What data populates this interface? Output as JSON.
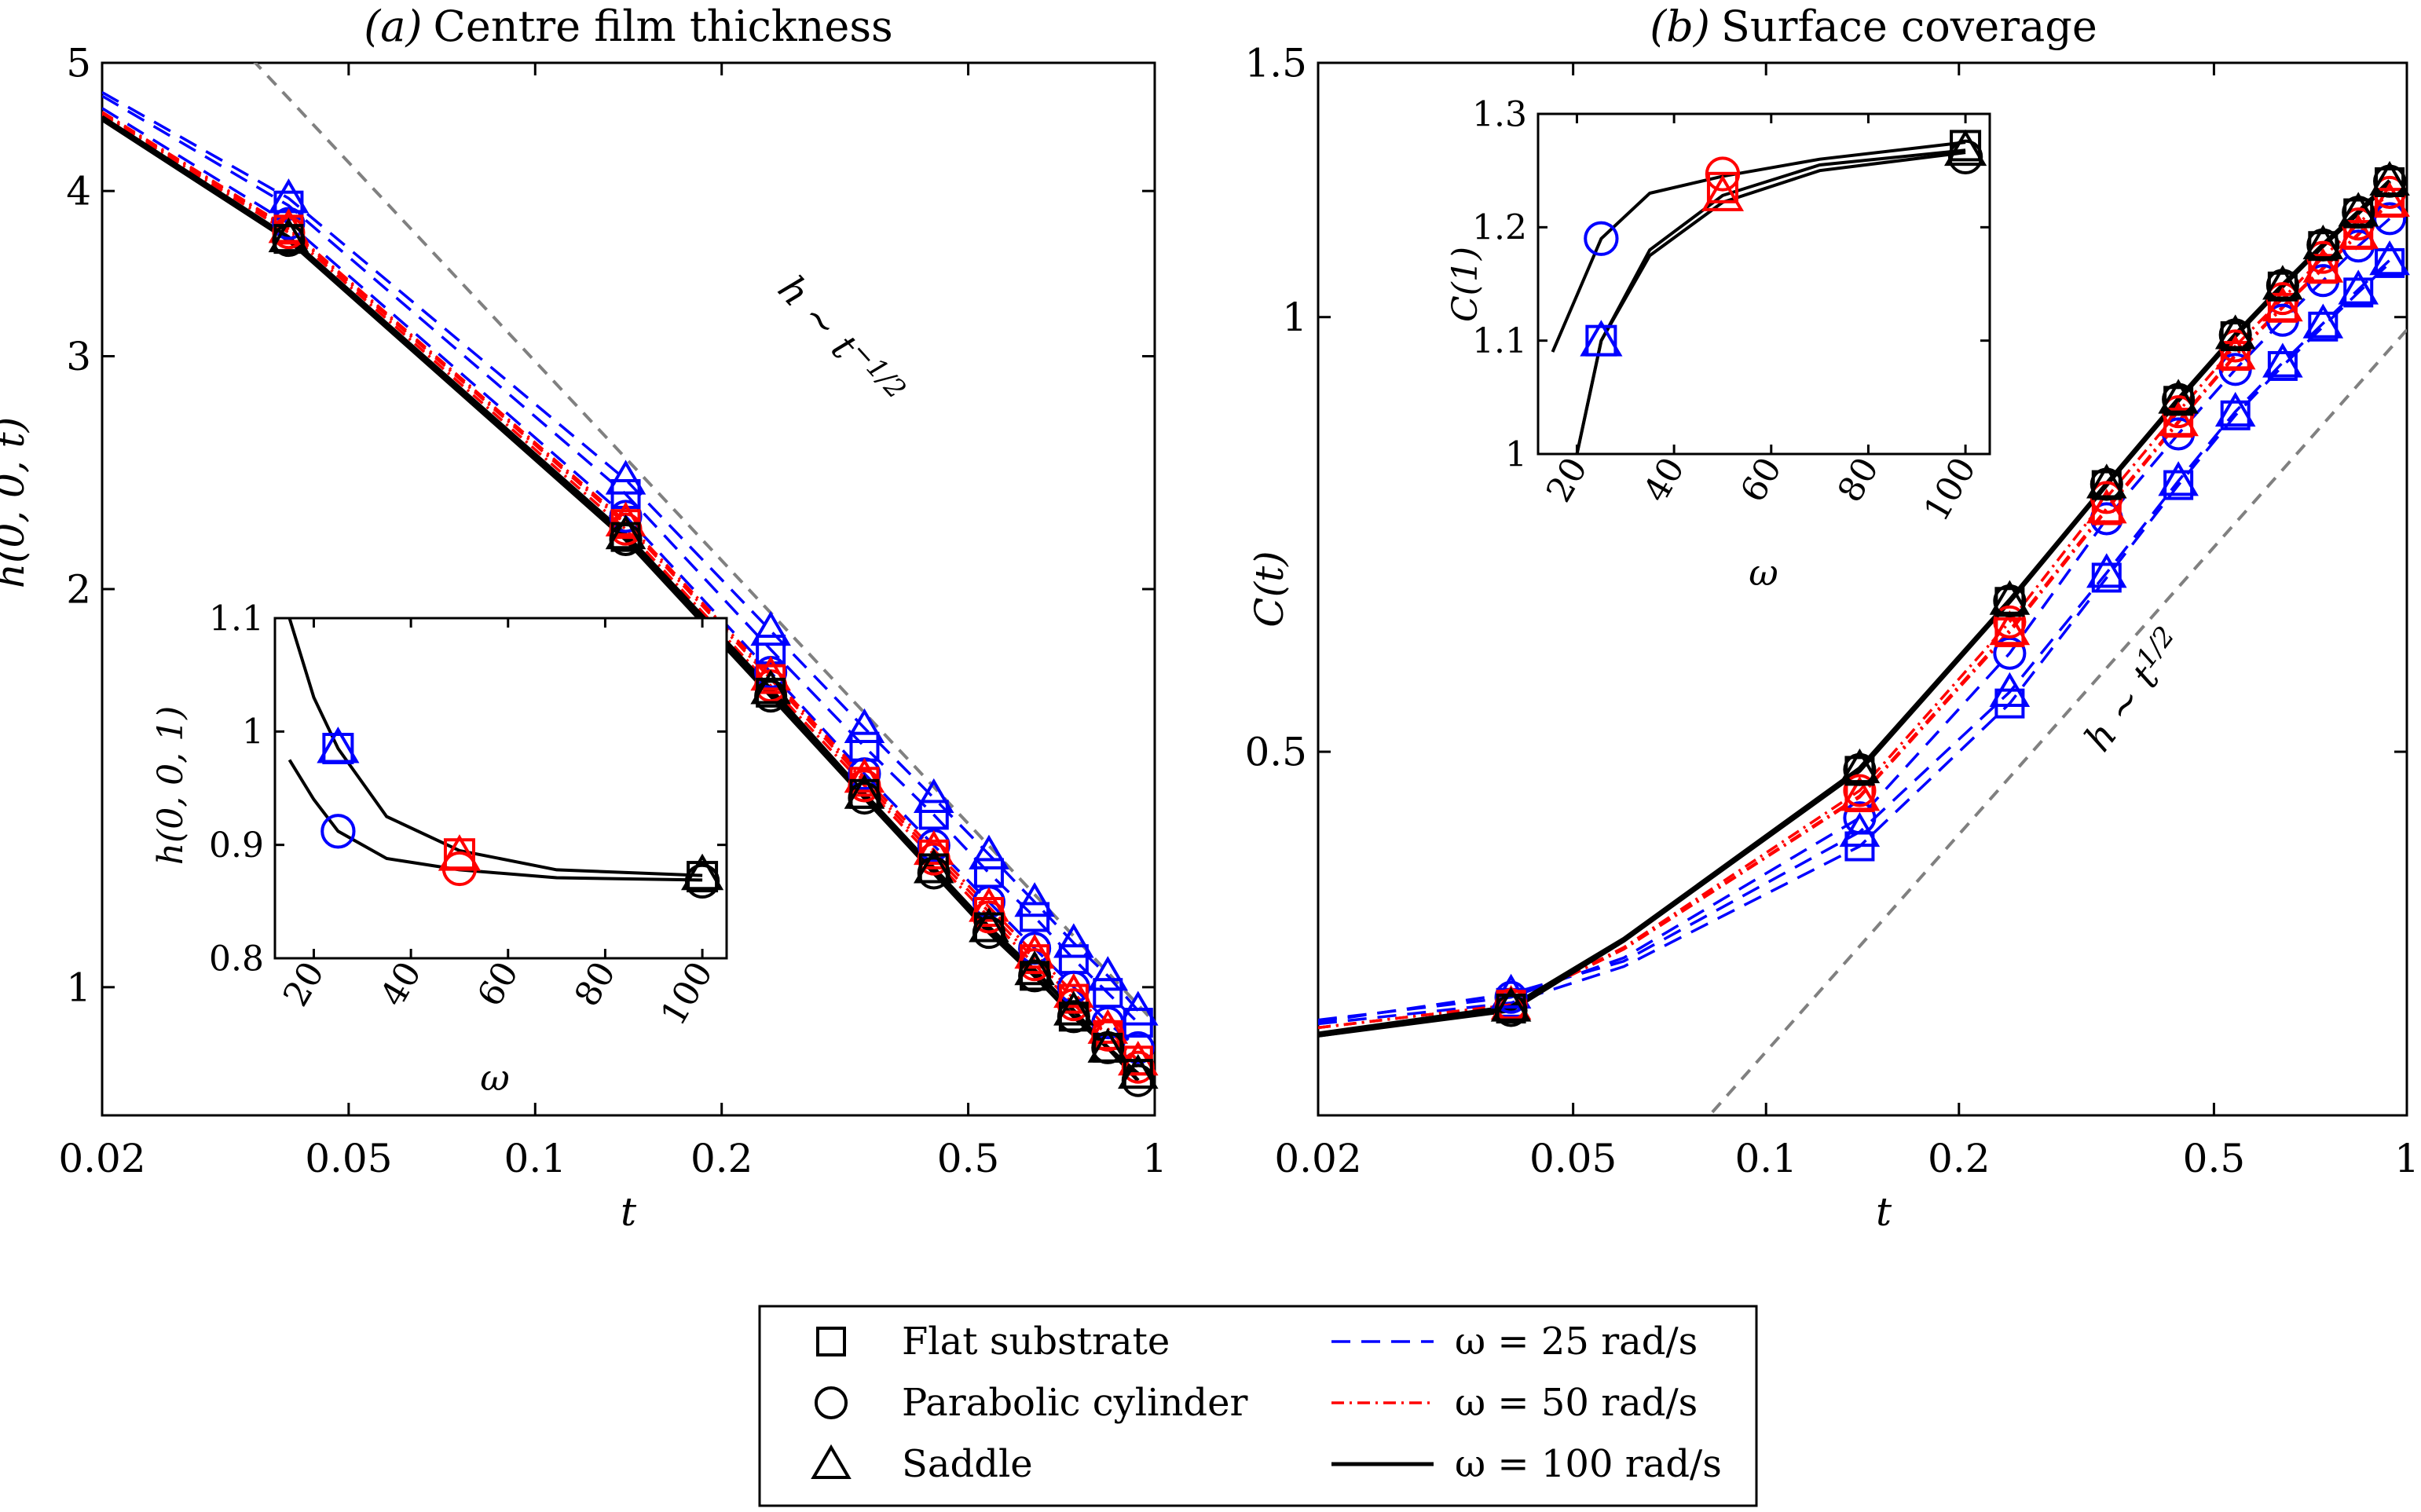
{
  "chart_data": [
    {
      "type": "line",
      "panel": "main-a",
      "title_prefix": "(a)",
      "title": "Centre film thickness",
      "xlabel": "t",
      "ylabel": "h(0, 0, t)",
      "xscale": "log",
      "yscale": "log",
      "xlim": [
        0.02,
        1
      ],
      "ylim": [
        0.8,
        5
      ],
      "xticks": [
        0.02,
        0.05,
        0.1,
        0.2,
        0.5,
        1
      ],
      "xticklabels": [
        "0.02",
        "0.05",
        "0.1",
        "0.2",
        "0.5",
        "1"
      ],
      "yticks": [
        1,
        2,
        3,
        4,
        5
      ],
      "yticklabels": [
        "1",
        "2",
        "3",
        "4",
        "5"
      ],
      "annotation": "h ∼ t^−1/2",
      "marker_t": [
        0.04,
        0.14,
        0.24,
        0.34,
        0.44,
        0.54,
        0.64,
        0.74,
        0.84,
        0.94
      ],
      "series": [
        {
          "omega": 25,
          "substrate": "Flat substrate",
          "x": [
            0.02,
            0.04,
            0.14,
            0.24,
            0.34,
            0.44,
            0.54,
            0.64,
            0.74,
            0.84,
            0.94
          ],
          "y": [
            4.72,
            3.9,
            2.36,
            1.8,
            1.52,
            1.35,
            1.22,
            1.13,
            1.05,
            0.99,
            0.94
          ]
        },
        {
          "omega": 25,
          "substrate": "Parabolic cylinder",
          "x": [
            0.02,
            0.04,
            0.14,
            0.24,
            0.34,
            0.44,
            0.54,
            0.64,
            0.74,
            0.84,
            0.94
          ],
          "y": [
            4.62,
            3.78,
            2.27,
            1.73,
            1.45,
            1.28,
            1.16,
            1.07,
            1.0,
            0.94,
            0.9
          ]
        },
        {
          "omega": 25,
          "substrate": "Saddle",
          "x": [
            0.02,
            0.04,
            0.14,
            0.24,
            0.34,
            0.44,
            0.54,
            0.64,
            0.74,
            0.84,
            0.94
          ],
          "y": [
            4.75,
            3.95,
            2.42,
            1.86,
            1.57,
            1.39,
            1.26,
            1.16,
            1.08,
            1.02,
            0.96
          ]
        },
        {
          "omega": 50,
          "substrate": "Flat substrate",
          "x": [
            0.02,
            0.04,
            0.14,
            0.24,
            0.34,
            0.44,
            0.54,
            0.64,
            0.74,
            0.84,
            0.94
          ],
          "y": [
            4.58,
            3.74,
            2.24,
            1.71,
            1.43,
            1.26,
            1.14,
            1.05,
            0.98,
            0.92,
            0.88
          ]
        },
        {
          "omega": 50,
          "substrate": "Parabolic cylinder",
          "x": [
            0.02,
            0.04,
            0.14,
            0.24,
            0.34,
            0.44,
            0.54,
            0.64,
            0.74,
            0.84,
            0.94
          ],
          "y": [
            4.57,
            3.72,
            2.22,
            1.69,
            1.42,
            1.25,
            1.13,
            1.04,
            0.97,
            0.92,
            0.87
          ]
        },
        {
          "omega": 50,
          "substrate": "Saddle",
          "x": [
            0.02,
            0.04,
            0.14,
            0.24,
            0.34,
            0.44,
            0.54,
            0.64,
            0.74,
            0.84,
            0.94
          ],
          "y": [
            4.59,
            3.75,
            2.25,
            1.72,
            1.44,
            1.27,
            1.15,
            1.06,
            0.99,
            0.93,
            0.88
          ]
        },
        {
          "omega": 100,
          "substrate": "Flat substrate",
          "x": [
            0.02,
            0.04,
            0.14,
            0.24,
            0.34,
            0.44,
            0.54,
            0.64,
            0.74,
            0.84,
            0.94
          ],
          "y": [
            4.54,
            3.68,
            2.19,
            1.67,
            1.4,
            1.23,
            1.11,
            1.02,
            0.95,
            0.9,
            0.86
          ]
        },
        {
          "omega": 100,
          "substrate": "Parabolic cylinder",
          "x": [
            0.02,
            0.04,
            0.14,
            0.24,
            0.34,
            0.44,
            0.54,
            0.64,
            0.74,
            0.84,
            0.94
          ],
          "y": [
            4.53,
            3.67,
            2.18,
            1.66,
            1.39,
            1.22,
            1.1,
            1.02,
            0.95,
            0.9,
            0.85
          ]
        },
        {
          "omega": 100,
          "substrate": "Saddle",
          "x": [
            0.02,
            0.04,
            0.14,
            0.24,
            0.34,
            0.44,
            0.54,
            0.64,
            0.74,
            0.84,
            0.94
          ],
          "y": [
            4.55,
            3.69,
            2.2,
            1.68,
            1.4,
            1.23,
            1.11,
            1.03,
            0.96,
            0.9,
            0.86
          ]
        }
      ]
    },
    {
      "type": "line",
      "panel": "inset-a",
      "xlabel": "ω",
      "ylabel": "h(0, 0, 1)",
      "xlim": [
        12,
        105
      ],
      "ylim": [
        0.8,
        1.1
      ],
      "xticks": [
        20,
        40,
        60,
        80,
        100
      ],
      "xticklabels": [
        "20",
        "40",
        "60",
        "80",
        "100"
      ],
      "yticks": [
        0.8,
        0.9,
        1.0,
        1.1
      ],
      "yticklabels": [
        "0.8",
        "0.9",
        "1",
        "1.1"
      ],
      "curves": [
        {
          "x": [
            15,
            20,
            25,
            35,
            50,
            70,
            100
          ],
          "y": [
            1.1,
            1.03,
            0.985,
            0.925,
            0.895,
            0.878,
            0.873
          ]
        },
        {
          "x": [
            15,
            20,
            25,
            35,
            50,
            70,
            100
          ],
          "y": [
            0.975,
            0.94,
            0.912,
            0.888,
            0.878,
            0.871,
            0.869
          ]
        }
      ],
      "markers": [
        {
          "omega": 25,
          "substrate": "Flat substrate",
          "value": 0.985
        },
        {
          "omega": 25,
          "substrate": "Parabolic cylinder",
          "value": 0.912
        },
        {
          "omega": 25,
          "substrate": "Saddle",
          "value": 0.986
        },
        {
          "omega": 50,
          "substrate": "Flat substrate",
          "value": 0.892
        },
        {
          "omega": 50,
          "substrate": "Parabolic cylinder",
          "value": 0.879
        },
        {
          "omega": 50,
          "substrate": "Saddle",
          "value": 0.891
        },
        {
          "omega": 100,
          "substrate": "Flat substrate",
          "value": 0.872
        },
        {
          "omega": 100,
          "substrate": "Parabolic cylinder",
          "value": 0.868
        },
        {
          "omega": 100,
          "substrate": "Saddle",
          "value": 0.874
        }
      ]
    },
    {
      "type": "line",
      "panel": "main-b",
      "title_prefix": "(b)",
      "title": "Surface coverage",
      "xlabel": "t",
      "ylabel": "C(t)",
      "xscale": "log",
      "yscale": "log",
      "xlim": [
        0.02,
        1
      ],
      "ylim": [
        0.28,
        1.5
      ],
      "xticks": [
        0.02,
        0.05,
        0.1,
        0.2,
        0.5,
        1
      ],
      "xticklabels": [
        "0.02",
        "0.05",
        "0.1",
        "0.2",
        "0.5",
        "1"
      ],
      "yticks": [
        0.5,
        1,
        1.5
      ],
      "yticklabels": [
        "0.5",
        "1",
        "1.5"
      ],
      "annotation": "h ∼ t^1/2",
      "marker_t": [
        0.04,
        0.14,
        0.24,
        0.34,
        0.44,
        0.54,
        0.64,
        0.74,
        0.84,
        0.94
      ],
      "series": [
        {
          "omega": 25,
          "substrate": "Flat substrate",
          "x": [
            0.02,
            0.04,
            0.06,
            0.14,
            0.24,
            0.34,
            0.44,
            0.54,
            0.64,
            0.74,
            0.84,
            0.94
          ],
          "y": [
            0.324,
            0.335,
            0.355,
            0.43,
            0.54,
            0.66,
            0.765,
            0.855,
            0.925,
            0.985,
            1.04,
            1.09
          ]
        },
        {
          "omega": 25,
          "substrate": "Parabolic cylinder",
          "x": [
            0.02,
            0.04,
            0.06,
            0.14,
            0.24,
            0.34,
            0.44,
            0.54,
            0.64,
            0.74,
            0.84,
            0.94
          ],
          "y": [
            0.326,
            0.338,
            0.36,
            0.45,
            0.585,
            0.725,
            0.83,
            0.92,
            0.995,
            1.06,
            1.12,
            1.17
          ]
        },
        {
          "omega": 25,
          "substrate": "Saddle",
          "x": [
            0.02,
            0.04,
            0.06,
            0.14,
            0.24,
            0.34,
            0.44,
            0.54,
            0.64,
            0.74,
            0.84,
            0.94
          ],
          "y": [
            0.325,
            0.34,
            0.358,
            0.44,
            0.55,
            0.665,
            0.77,
            0.86,
            0.93,
            0.99,
            1.045,
            1.095
          ]
        },
        {
          "omega": 50,
          "substrate": "Flat substrate",
          "x": [
            0.02,
            0.04,
            0.06,
            0.14,
            0.24,
            0.34,
            0.44,
            0.54,
            0.64,
            0.74,
            0.84,
            0.94
          ],
          "y": [
            0.322,
            0.334,
            0.365,
            0.465,
            0.605,
            0.735,
            0.845,
            0.94,
            1.015,
            1.08,
            1.14,
            1.2
          ]
        },
        {
          "omega": 50,
          "substrate": "Parabolic cylinder",
          "x": [
            0.02,
            0.04,
            0.06,
            0.14,
            0.24,
            0.34,
            0.44,
            0.54,
            0.64,
            0.74,
            0.84,
            0.94
          ],
          "y": [
            0.322,
            0.334,
            0.366,
            0.47,
            0.615,
            0.75,
            0.86,
            0.955,
            1.03,
            1.1,
            1.16,
            1.22
          ]
        },
        {
          "omega": 50,
          "substrate": "Saddle",
          "x": [
            0.02,
            0.04,
            0.06,
            0.14,
            0.24,
            0.34,
            0.44,
            0.54,
            0.64,
            0.74,
            0.84,
            0.94
          ],
          "y": [
            0.322,
            0.334,
            0.365,
            0.466,
            0.607,
            0.737,
            0.847,
            0.942,
            1.017,
            1.082,
            1.142,
            1.202
          ]
        },
        {
          "omega": 100,
          "substrate": "Flat substrate",
          "x": [
            0.02,
            0.04,
            0.06,
            0.14,
            0.24,
            0.34,
            0.44,
            0.54,
            0.64,
            0.74,
            0.84,
            0.94
          ],
          "y": [
            0.318,
            0.332,
            0.37,
            0.485,
            0.635,
            0.765,
            0.875,
            0.97,
            1.05,
            1.12,
            1.18,
            1.24
          ]
        },
        {
          "omega": 100,
          "substrate": "Parabolic cylinder",
          "x": [
            0.02,
            0.04,
            0.06,
            0.14,
            0.24,
            0.34,
            0.44,
            0.54,
            0.64,
            0.74,
            0.84,
            0.94
          ],
          "y": [
            0.318,
            0.331,
            0.37,
            0.486,
            0.636,
            0.766,
            0.877,
            0.972,
            1.052,
            1.122,
            1.182,
            1.242
          ]
        },
        {
          "omega": 100,
          "substrate": "Saddle",
          "x": [
            0.02,
            0.04,
            0.06,
            0.14,
            0.24,
            0.34,
            0.44,
            0.54,
            0.64,
            0.74,
            0.84,
            0.94
          ],
          "y": [
            0.319,
            0.333,
            0.371,
            0.487,
            0.637,
            0.767,
            0.878,
            0.973,
            1.053,
            1.123,
            1.183,
            1.243
          ]
        }
      ]
    },
    {
      "type": "line",
      "panel": "inset-b",
      "xlabel": "ω",
      "ylabel": "C(1)",
      "xlim": [
        12,
        105
      ],
      "ylim": [
        1.0,
        1.3
      ],
      "xticks": [
        20,
        40,
        60,
        80,
        100
      ],
      "xticklabels": [
        "20",
        "40",
        "60",
        "80",
        "100"
      ],
      "yticks": [
        1.0,
        1.1,
        1.2,
        1.3
      ],
      "yticklabels": [
        "1",
        "1.1",
        "1.2",
        "1.3"
      ],
      "curves": [
        {
          "x": [
            15,
            20,
            25,
            35,
            50,
            70,
            100
          ],
          "y": [
            1.09,
            1.14,
            1.19,
            1.23,
            1.245,
            1.26,
            1.275
          ]
        },
        {
          "x": [
            20,
            25,
            35,
            50,
            70,
            100
          ],
          "y": [
            1.0,
            1.1,
            1.18,
            1.228,
            1.255,
            1.268
          ]
        },
        {
          "x": [
            20,
            25,
            35,
            50,
            70,
            100
          ],
          "y": [
            1.0,
            1.1,
            1.175,
            1.222,
            1.25,
            1.266
          ]
        }
      ],
      "markers": [
        {
          "omega": 25,
          "substrate": "Flat substrate",
          "value": 1.1
        },
        {
          "omega": 25,
          "substrate": "Parabolic cylinder",
          "value": 1.19
        },
        {
          "omega": 25,
          "substrate": "Saddle",
          "value": 1.1
        },
        {
          "omega": 50,
          "substrate": "Flat substrate",
          "value": 1.235
        },
        {
          "omega": 50,
          "substrate": "Parabolic cylinder",
          "value": 1.247
        },
        {
          "omega": 50,
          "substrate": "Saddle",
          "value": 1.228
        },
        {
          "omega": 100,
          "substrate": "Flat substrate",
          "value": 1.272
        },
        {
          "omega": 100,
          "substrate": "Parabolic cylinder",
          "value": 1.262
        },
        {
          "omega": 100,
          "substrate": "Saddle",
          "value": 1.268
        }
      ]
    }
  ],
  "legend": {
    "markers": [
      {
        "shape": "square",
        "label": "Flat substrate"
      },
      {
        "shape": "circle",
        "label": "Parabolic cylinder"
      },
      {
        "shape": "triangle",
        "label": "Saddle"
      }
    ],
    "lines": [
      {
        "omega": 25,
        "label": "ω = 25 rad/s",
        "color": "#0000ff",
        "dash": "dashed"
      },
      {
        "omega": 50,
        "label": "ω = 50 rad/s",
        "color": "#ff0000",
        "dash": "dashdot"
      },
      {
        "omega": 100,
        "label": "ω = 100 rad/s",
        "color": "#000000",
        "dash": "solid"
      }
    ]
  },
  "colors": {
    "omega_25": "#0000ff",
    "omega_50": "#ff0000",
    "omega_100": "#000000",
    "guide": "#808080"
  }
}
